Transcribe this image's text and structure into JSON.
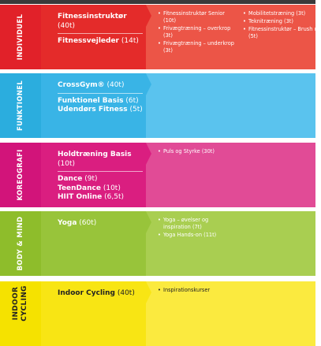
{
  "rows": [
    {
      "label": "INDIVIDUEL",
      "groups": [
        [
          {
            "name": "Fitnessinstruktør",
            "hours": "(40t)"
          }
        ],
        [
          {
            "name": "Fitnessvejleder",
            "hours": "(14t)"
          }
        ]
      ],
      "extras": [
        [
          "Fitnessinstruktør Senior (10t)",
          "Frivægtræning – overkrop (3t)",
          "Frivægtræning – underkrop (3t)"
        ],
        [
          "Mobilitetstræning (3t)",
          "Teknitræning (3t)",
          "Fitnessinstruktør – Brush up (5t)"
        ]
      ]
    },
    {
      "label": "FUNKTIONEL",
      "groups": [
        [
          {
            "name": "CrossGym®",
            "hours": "(40t)"
          }
        ],
        [
          {
            "name": "Funktionel Basis",
            "hours": "(6t)"
          },
          {
            "name": "Udendørs Fitness",
            "hours": "(5t)"
          }
        ]
      ],
      "extras": []
    },
    {
      "label": "KOREOGRAFI",
      "groups": [
        [
          {
            "name": "Holdtræning Basis",
            "hours": "(10t)"
          }
        ],
        [
          {
            "name": "Dance",
            "hours": "(9t)"
          },
          {
            "name": "TeenDance",
            "hours": "(10t)"
          },
          {
            "name": "HIIT Online",
            "hours": "(6,5t)"
          }
        ]
      ],
      "extras": [
        [
          "Puls og Styrke (30t)"
        ]
      ]
    },
    {
      "label": "BODY & MIND",
      "groups": [
        [
          {
            "name": "Yoga",
            "hours": "(60t)"
          }
        ]
      ],
      "extras": [
        [
          "Yoga – øvelser og inspiration (7t)",
          "Yoga Hands-on (11t)"
        ]
      ]
    },
    {
      "label": "INDOOR CYCLING",
      "groups": [
        [
          {
            "name": "Indoor Cycling",
            "hours": "(40t)"
          }
        ]
      ],
      "extras": [
        [
          "Inspirationskurser"
        ]
      ]
    }
  ]
}
